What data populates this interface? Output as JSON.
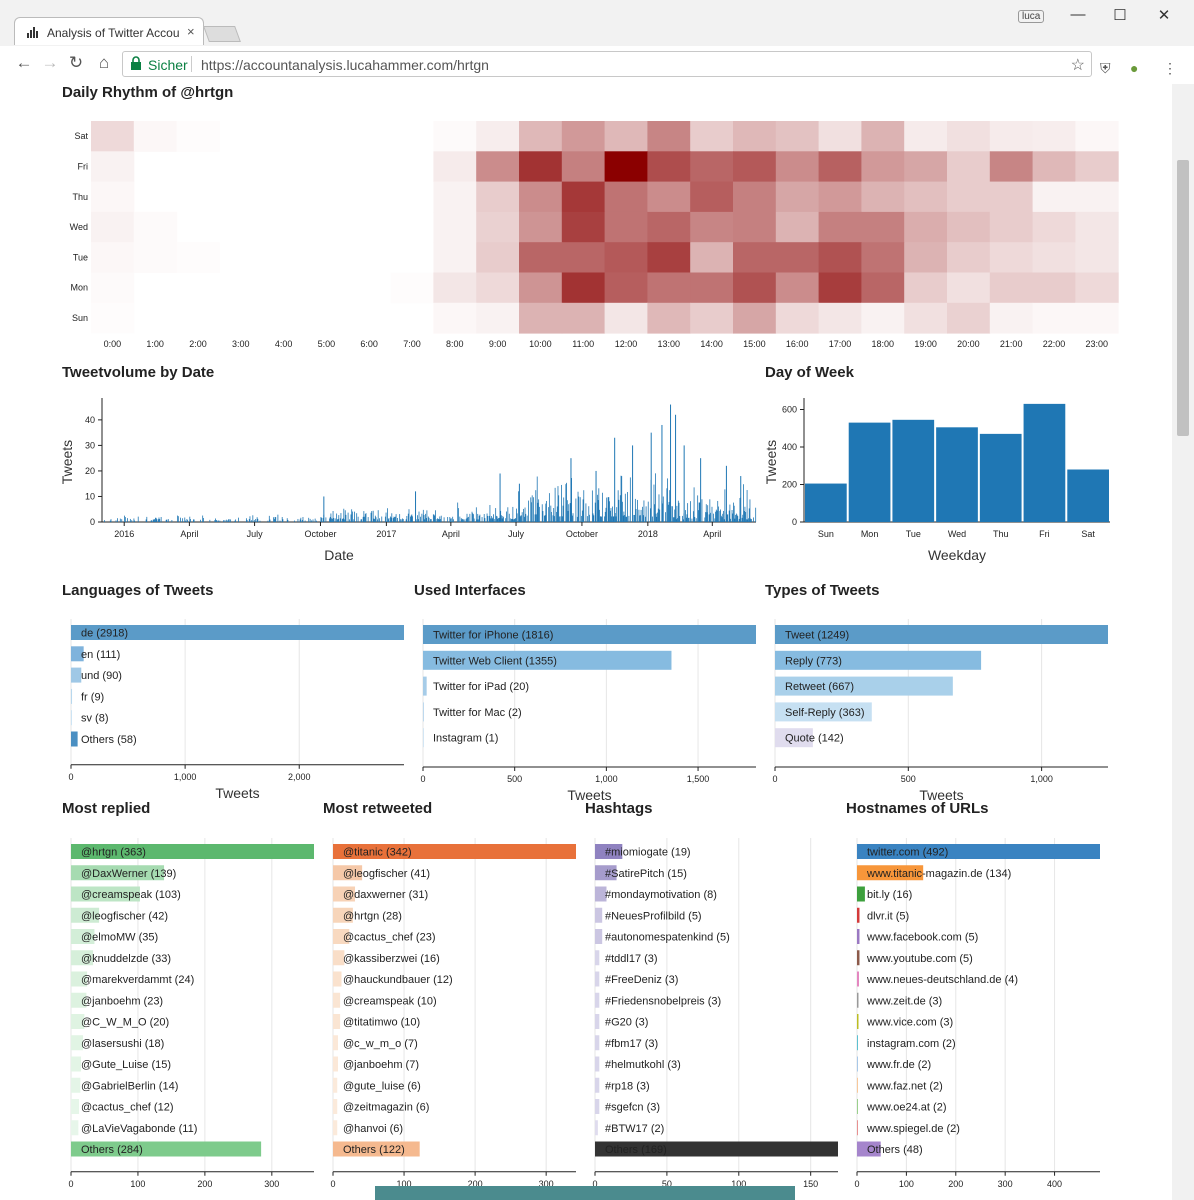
{
  "browser": {
    "tab_title": "Analysis of Twitter Accou",
    "tab_close": "×",
    "user_label": "luca",
    "secure_label": "Sicher",
    "url": "https://accountanalysis.lucahammer.com/hrtgn",
    "win_minimize": "—",
    "win_maximize": "☐",
    "win_close": "✕",
    "icons": [
      "bar-chart-icon",
      "back-icon",
      "forward-icon",
      "reload-icon",
      "home-icon",
      "lock-icon",
      "star-icon",
      "ublock-icon",
      "plant-icon",
      "menu-icon"
    ]
  },
  "sections": {
    "daily_rhythm": "Daily Rhythm of @hrtgn",
    "tweetvolume": "Tweetvolume by Date",
    "day_of_week": "Day of Week",
    "languages": "Languages of Tweets",
    "interfaces": "Used Interfaces",
    "types": "Types of Tweets",
    "most_replied": "Most replied",
    "most_retweeted": "Most retweeted",
    "hashtags": "Hashtags",
    "hostnames": "Hostnames of URLs"
  },
  "chart_data": [
    {
      "id": "heatmap",
      "type": "heatmap",
      "title": "Daily Rhythm of @hrtgn",
      "rows": [
        "Sat",
        "Fri",
        "Thu",
        "Wed",
        "Tue",
        "Mon",
        "Sun"
      ],
      "columns": [
        "0:00",
        "1:00",
        "2:00",
        "3:00",
        "4:00",
        "5:00",
        "6:00",
        "7:00",
        "8:00",
        "9:00",
        "10:00",
        "11:00",
        "12:00",
        "13:00",
        "14:00",
        "15:00",
        "16:00",
        "17:00",
        "18:00",
        "19:00",
        "20:00",
        "21:00",
        "22:00",
        "23:00"
      ],
      "values": [
        [
          15,
          3,
          1,
          0,
          0,
          0,
          0,
          0,
          2,
          7,
          28,
          40,
          28,
          48,
          20,
          28,
          24,
          12,
          30,
          8,
          12,
          8,
          7,
          3
        ],
        [
          5,
          0,
          0,
          0,
          0,
          0,
          0,
          0,
          8,
          45,
          80,
          50,
          100,
          70,
          60,
          65,
          45,
          62,
          40,
          35,
          20,
          48,
          28,
          20
        ],
        [
          3,
          0,
          0,
          0,
          0,
          0,
          0,
          0,
          5,
          20,
          45,
          78,
          55,
          45,
          63,
          50,
          35,
          40,
          30,
          25,
          20,
          20,
          5,
          5
        ],
        [
          5,
          2,
          0,
          0,
          0,
          0,
          0,
          0,
          5,
          18,
          42,
          75,
          55,
          60,
          48,
          50,
          30,
          50,
          50,
          32,
          25,
          20,
          15,
          10
        ],
        [
          3,
          2,
          1,
          0,
          0,
          0,
          0,
          0,
          5,
          20,
          60,
          60,
          65,
          75,
          30,
          60,
          60,
          68,
          55,
          30,
          20,
          15,
          12,
          10
        ],
        [
          2,
          0,
          0,
          0,
          0,
          0,
          0,
          1,
          10,
          15,
          42,
          80,
          63,
          55,
          55,
          68,
          45,
          76,
          60,
          20,
          12,
          20,
          20,
          15
        ],
        [
          1,
          0,
          0,
          0,
          0,
          0,
          0,
          0,
          3,
          5,
          30,
          30,
          10,
          28,
          20,
          35,
          15,
          10,
          5,
          12,
          18,
          5,
          3,
          3
        ]
      ],
      "color_low": "#ffffff",
      "color_high": "#8b0000"
    },
    {
      "id": "volume",
      "type": "bar",
      "title": "Tweetvolume by Date",
      "xlabel": "Date",
      "ylabel": "Tweets",
      "x_range": [
        "2015-12-01",
        "2018-06-01"
      ],
      "x_ticks": [
        {
          "date": "2016-01-01",
          "label": "2016"
        },
        {
          "date": "2016-04-01",
          "label": "April"
        },
        {
          "date": "2016-07-01",
          "label": "July"
        },
        {
          "date": "2016-10-01",
          "label": "October"
        },
        {
          "date": "2017-01-01",
          "label": "2017"
        },
        {
          "date": "2017-04-01",
          "label": "April"
        },
        {
          "date": "2017-07-01",
          "label": "July"
        },
        {
          "date": "2017-10-01",
          "label": "October"
        },
        {
          "date": "2018-01-01",
          "label": "2018"
        },
        {
          "date": "2018-04-01",
          "label": "April"
        }
      ],
      "y_ticks": [
        0,
        10,
        20,
        30,
        40
      ],
      "ylim": [
        0,
        47
      ],
      "color": "#1f77b4",
      "segments": [
        {
          "from": "2015-12-01",
          "to": "2016-09-30",
          "low": 0,
          "high": 3
        },
        {
          "from": "2016-10-01",
          "to": "2017-03-31",
          "low": 1,
          "high": 6
        },
        {
          "from": "2017-04-01",
          "to": "2017-06-30",
          "low": 1,
          "high": 8
        },
        {
          "from": "2017-07-01",
          "to": "2017-10-31",
          "low": 2,
          "high": 22
        },
        {
          "from": "2017-11-01",
          "to": "2018-01-31",
          "low": 2,
          "high": 28
        },
        {
          "from": "2018-02-01",
          "to": "2018-05-31",
          "low": 1,
          "high": 16
        }
      ],
      "peaks": [
        {
          "date": "2016-10-05",
          "value": 10
        },
        {
          "date": "2017-02-10",
          "value": 12
        },
        {
          "date": "2017-06-08",
          "value": 19
        },
        {
          "date": "2017-07-05",
          "value": 15
        },
        {
          "date": "2017-09-15",
          "value": 25
        },
        {
          "date": "2017-10-20",
          "value": 20
        },
        {
          "date": "2017-11-15",
          "value": 33
        },
        {
          "date": "2017-12-10",
          "value": 30
        },
        {
          "date": "2018-01-05",
          "value": 35
        },
        {
          "date": "2018-01-20",
          "value": 38
        },
        {
          "date": "2018-02-01",
          "value": 46
        },
        {
          "date": "2018-02-08",
          "value": 42
        },
        {
          "date": "2018-02-20",
          "value": 30
        },
        {
          "date": "2018-03-15",
          "value": 25
        },
        {
          "date": "2018-04-20",
          "value": 22
        },
        {
          "date": "2018-05-10",
          "value": 18
        }
      ]
    },
    {
      "id": "weekday",
      "type": "bar",
      "title": "Day of Week",
      "xlabel": "Weekday",
      "ylabel": "Tweets",
      "categories": [
        "Sun",
        "Mon",
        "Tue",
        "Wed",
        "Thu",
        "Fri",
        "Sat"
      ],
      "values": [
        205,
        530,
        545,
        505,
        470,
        630,
        280
      ],
      "y_ticks": [
        0,
        200,
        400,
        600
      ],
      "ylim": [
        0,
        640
      ],
      "color": "#1f77b4"
    },
    {
      "id": "languages",
      "type": "bar",
      "orientation": "horizontal",
      "title": "Languages of Tweets",
      "xlabel": "Tweets",
      "labels": [
        "de (2918)",
        "en (111)",
        "und (90)",
        "fr (9)",
        "sv (8)",
        "Others (58)"
      ],
      "values": [
        2918,
        111,
        90,
        9,
        8,
        58
      ],
      "colors": [
        "#5b9bc8",
        "#7fb3dc",
        "#9fc8e6",
        "#b8d8ee",
        "#cde4f4",
        "#4a8fc2"
      ],
      "x_ticks": [
        0,
        1000,
        2000
      ],
      "tick_labels": [
        "0",
        "1,000",
        "2,000"
      ],
      "xlim": [
        0,
        2918
      ]
    },
    {
      "id": "interfaces",
      "type": "bar",
      "orientation": "horizontal",
      "title": "Used Interfaces",
      "xlabel": "Tweets",
      "labels": [
        "Twitter for iPhone (1816)",
        "Twitter Web Client (1355)",
        "Twitter for iPad (20)",
        "Twitter for Mac (2)",
        "Instagram (1)"
      ],
      "values": [
        1816,
        1355,
        20,
        2,
        1
      ],
      "colors": [
        "#5b9bc8",
        "#86bbe0",
        "#a6cce8",
        "#bed9ee",
        "#d3e6f4"
      ],
      "x_ticks": [
        0,
        500,
        1000,
        1500
      ],
      "tick_labels": [
        "0",
        "500",
        "1,000",
        "1,500"
      ],
      "xlim": [
        0,
        1816
      ]
    },
    {
      "id": "types",
      "type": "bar",
      "orientation": "horizontal",
      "title": "Types of Tweets",
      "xlabel": "Tweets",
      "labels": [
        "Tweet (1249)",
        "Reply (773)",
        "Retweet (667)",
        "Self-Reply (363)",
        "Quote (142)"
      ],
      "values": [
        1249,
        773,
        667,
        363,
        142
      ],
      "colors": [
        "#5b9bc8",
        "#86bbe0",
        "#a9d0ea",
        "#c6e0f2",
        "#e0dcee"
      ],
      "x_ticks": [
        0,
        500,
        1000
      ],
      "tick_labels": [
        "0",
        "500",
        "1,000"
      ],
      "xlim": [
        0,
        1249
      ]
    },
    {
      "id": "replied",
      "type": "bar",
      "orientation": "horizontal",
      "title": "Most replied",
      "labels": [
        "@hrtgn (363)",
        "@DaxWerner (139)",
        "@creamspeak (103)",
        "@leogfischer (42)",
        "@elmoMW (35)",
        "@knuddelzde (33)",
        "@marekverdammt (24)",
        "@janboehm (23)",
        "@C_W_M_O (20)",
        "@lasersushi (18)",
        "@Gute_Luise (15)",
        "@GabrielBerlin (14)",
        "@cactus_chef (12)",
        "@LaVieVagabonde (11)",
        "Others (284)"
      ],
      "values": [
        363,
        139,
        103,
        42,
        35,
        33,
        24,
        23,
        20,
        18,
        15,
        14,
        12,
        11,
        284
      ],
      "colors": [
        "#5cb86e",
        "#a6dbb1",
        "#bde5c5",
        "#cdebd3",
        "#d3eed8",
        "#d6efda",
        "#dbf1de",
        "#ddf2e0",
        "#dff3e2",
        "#e1f4e4",
        "#e3f5e6",
        "#e4f5e7",
        "#e6f6e9",
        "#e7f6ea",
        "#7ecb8c"
      ],
      "x_ticks": [
        0,
        100,
        200,
        300
      ],
      "xlim": [
        0,
        363
      ]
    },
    {
      "id": "retweeted",
      "type": "bar",
      "orientation": "horizontal",
      "title": "Most retweeted",
      "labels": [
        "@titanic (342)",
        "@leogfischer (41)",
        "@daxwerner (31)",
        "@hrtgn (28)",
        "@cactus_chef (23)",
        "@kassiberzwei (16)",
        "@hauckundbauer (12)",
        "@creamspeak (10)",
        "@titatimwo (10)",
        "@c_w_m_o (7)",
        "@janboehm (7)",
        "@gute_luise (6)",
        "@zeitmagazin (6)",
        "@hanvoi (6)",
        "Others (122)"
      ],
      "values": [
        342,
        41,
        31,
        28,
        23,
        16,
        12,
        10,
        10,
        7,
        7,
        6,
        6,
        6,
        122
      ],
      "colors": [
        "#e8713a",
        "#f5c8a8",
        "#f7d2b6",
        "#f7d5ba",
        "#f8d9c0",
        "#f9dec8",
        "#fae2ce",
        "#fae5d3",
        "#fae5d3",
        "#fbe8d8",
        "#fbe8d8",
        "#fbeadb",
        "#fbeadb",
        "#fbeadb",
        "#f5b98f"
      ],
      "x_ticks": [
        0,
        100,
        200,
        300
      ],
      "xlim": [
        0,
        342
      ]
    },
    {
      "id": "hashtags",
      "type": "bar",
      "orientation": "horizontal",
      "title": "Hashtags",
      "labels": [
        "#miomiogate (19)",
        "#SatirePitch (15)",
        "#mondaymotivation (8)",
        "#NeuesProfilbild (5)",
        "#autonomespatenkind (5)",
        "#tddl17 (3)",
        "#FreeDeniz (3)",
        "#Friedensnobelpreis (3)",
        "#G20 (3)",
        "#fbm17 (3)",
        "#helmutkohl (3)",
        "#rp18 (3)",
        "#sgefcn (3)",
        "#BTW17 (2)",
        "Others (169)"
      ],
      "values": [
        19,
        15,
        8,
        5,
        5,
        3,
        3,
        3,
        3,
        3,
        3,
        3,
        3,
        2,
        169
      ],
      "colors": [
        "#8f82c0",
        "#a69ccc",
        "#bcb5d9",
        "#cbc6e2",
        "#cbc6e2",
        "#d8d5ea",
        "#d8d5ea",
        "#d8d5ea",
        "#d8d5ea",
        "#d8d5ea",
        "#d8d5ea",
        "#d8d5ea",
        "#d8d5ea",
        "#dfdcee",
        "#333333"
      ],
      "x_ticks": [
        0,
        50,
        100,
        150
      ],
      "xlim": [
        0,
        169
      ]
    },
    {
      "id": "hostnames",
      "type": "bar",
      "orientation": "horizontal",
      "title": "Hostnames of URLs",
      "labels": [
        "twitter.com (492)",
        "www.titanic-magazin.de (134)",
        "bit.ly (16)",
        "dlvr.it (5)",
        "www.facebook.com (5)",
        "www.youtube.com (5)",
        "www.neues-deutschland.de (4)",
        "www.zeit.de (3)",
        "www.vice.com (3)",
        "instagram.com (2)",
        "www.fr.de (2)",
        "www.faz.net (2)",
        "www.oe24.at (2)",
        "www.spiegel.de (2)",
        "Others (48)"
      ],
      "values": [
        492,
        134,
        16,
        5,
        5,
        5,
        4,
        3,
        3,
        2,
        2,
        2,
        2,
        2,
        48
      ],
      "colors": [
        "#3a83c1",
        "#f7963a",
        "#3da03d",
        "#d43a3a",
        "#9a78c2",
        "#8c5a4a",
        "#e486c0",
        "#999999",
        "#bcbd22",
        "#5cc0d0",
        "#a8c8e8",
        "#f8c89a",
        "#9ad08c",
        "#e89090",
        "#a585cc"
      ],
      "x_ticks": [
        0,
        100,
        200,
        300,
        400
      ],
      "xlim": [
        0,
        492
      ]
    }
  ]
}
